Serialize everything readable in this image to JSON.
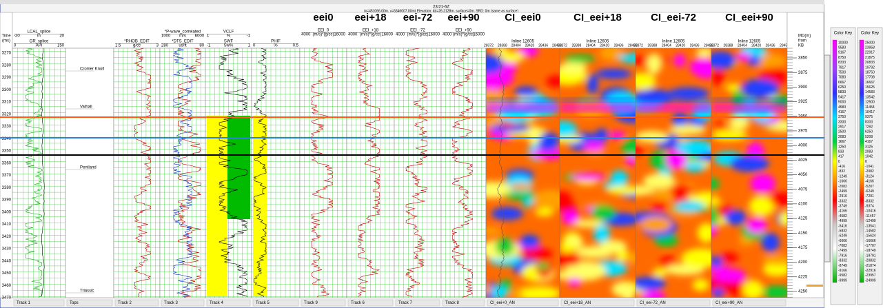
{
  "window": {
    "title": "23/21-6Z",
    "subtitle": "(x=451066.00m, y=6346007.00m) Elevation: kb=26.2128m, surface=0m, SRD: 0m (same as surface)"
  },
  "time_axis": {
    "label_lines": [
      "Time",
      "(ms)"
    ],
    "ticks": [
      3270,
      3280,
      3290,
      3300,
      3310,
      3320,
      3330,
      3340,
      3350,
      3360,
      3370,
      3380,
      3390,
      3400,
      3410,
      3420,
      3430,
      3440,
      3450,
      3460,
      3470
    ]
  },
  "md_axis": {
    "label_lines": [
      "MD(m)",
      "from",
      "KB"
    ],
    "ticks": [
      3850,
      3875,
      3900,
      3925,
      3950,
      3975,
      4000,
      4025,
      4050,
      4075,
      4100,
      4125,
      4150,
      4175,
      4200,
      4225,
      4250
    ]
  },
  "tracks": [
    {
      "footer": "Track 1",
      "curves": [
        {
          "name": "LCAL_splice",
          "min": "-20",
          "unit": "in",
          "max": "20"
        },
        {
          "name": "GR_splice",
          "min": "0",
          "unit": "API",
          "max": "150"
        }
      ]
    },
    {
      "footer": "Tops",
      "tops": [
        "Cromer Knoll",
        "Valhall",
        "Pentland",
        "Triassic"
      ]
    },
    {
      "footer": "Track 2",
      "curves": [
        {
          "name": "*RHOB_EDIT",
          "min": "1.5",
          "unit": "g/cc",
          "max": "3"
        }
      ]
    },
    {
      "footer": "Track 3",
      "curves": [
        {
          "name": "*P-wave_correlated",
          "min": "1000",
          "unit": "m/s",
          "max": "6000"
        },
        {
          "name": "*DTS_EDIT",
          "min": "280",
          "unit": "us/ft",
          "max": "80"
        }
      ]
    },
    {
      "footer": "Track 4",
      "curves": [
        {
          "name": "VCLF",
          "min": "1",
          "unit": "%",
          "max": "-1"
        },
        {
          "name": "SWF",
          "min": "-1",
          "unit": "Sw%",
          "max": "1"
        }
      ]
    },
    {
      "footer": "Track 5",
      "curves": [
        {
          "name": "PHIF",
          "min": "0",
          "unit": "%",
          "max": "0.5"
        }
      ]
    },
    {
      "footer": "Track 9",
      "big": "eei0",
      "curves": [
        {
          "name": "EEI_0",
          "min": "4000",
          "unit": "(m/s)*(g/cc)",
          "max": "16000"
        }
      ]
    },
    {
      "footer": "Track 6",
      "big": "eei+18",
      "curves": [
        {
          "name": "EEI_+18",
          "min": "4000",
          "unit": "(m/s)*(g/cc)",
          "max": "16000"
        }
      ]
    },
    {
      "footer": "Track 7",
      "big": "eei-72",
      "curves": [
        {
          "name": "EEI_-72",
          "min": "4000",
          "unit": "(m/s)*(g/cc)",
          "max": "16000"
        }
      ]
    },
    {
      "footer": "Track 8",
      "big": "eei+90",
      "curves": [
        {
          "name": "EEI_+90",
          "min": "4000",
          "unit": "(m/s)*(g/cc)",
          "max": "16000"
        }
      ]
    }
  ],
  "seismic": [
    {
      "title": "CI_eei0",
      "inline": "Inline 12605",
      "xlabels": [
        "28372",
        "28388",
        "28404",
        "28420",
        "28436",
        "28452"
      ],
      "footer": "CI_eei+0_AN"
    },
    {
      "title": "CI_eei+18",
      "inline": "Inline 12605",
      "xlabels": [
        "28372",
        "28388",
        "28404",
        "28420",
        "28436",
        "28452"
      ],
      "footer": "CI_eei+18_AN"
    },
    {
      "title": "CI_eei-72",
      "inline": "Inline 12605",
      "xlabels": [
        "28372",
        "28388",
        "28404",
        "28420",
        "28436",
        "28452"
      ],
      "footer": "CI_eei-72_AN"
    },
    {
      "title": "CI_eei+90",
      "inline": "Inline 12605",
      "xlabels": [
        "28372",
        "28388",
        "28404",
        "28420",
        "28436",
        "28452"
      ],
      "footer": "CI_eei+90_AN"
    }
  ],
  "color_keys": [
    {
      "title": "Color Key",
      "values": [
        "10000",
        "9583",
        "9167",
        "8750",
        "8333",
        "7917",
        "7500",
        "7083",
        "6667",
        "6250",
        "5833",
        "5417",
        "5000",
        "4583",
        "4167",
        "3750",
        "3333",
        "2917",
        "2500",
        "2083",
        "1667",
        "1250",
        "833",
        "417",
        "0",
        "-416",
        "-832",
        "-1249",
        "-1666",
        "-2082",
        "-2499",
        "-2916",
        "-3332",
        "-3749",
        "-4166",
        "-4582",
        "-4999",
        "-5416",
        "-5832",
        "-6249",
        "-6666",
        "-7082",
        "-7499",
        "-7916",
        "-8332",
        "-8749",
        "-9166",
        "-9582",
        "-9999"
      ]
    },
    {
      "title": "Color Key",
      "values": [
        "25000",
        "23958",
        "22917",
        "21875",
        "20833",
        "19792",
        "18750",
        "17708",
        "16667",
        "15625",
        "14583",
        "13542",
        "12500",
        "11458",
        "10417",
        "9375",
        "8333",
        "7292",
        "6250",
        "5208",
        "4167",
        "3125",
        "2083",
        "1042",
        "0",
        "-1041",
        "-2082",
        "-3124",
        "-4166",
        "-5207",
        "-6249",
        "-7291",
        "-8332",
        "-9374",
        "-10416",
        "-11457",
        "-12499",
        "-13541",
        "-14582",
        "-15624",
        "-16666",
        "-17707",
        "-18749",
        "-19791",
        "-20832",
        "-21874",
        "-22916",
        "-23957",
        "-24999"
      ]
    }
  ]
}
